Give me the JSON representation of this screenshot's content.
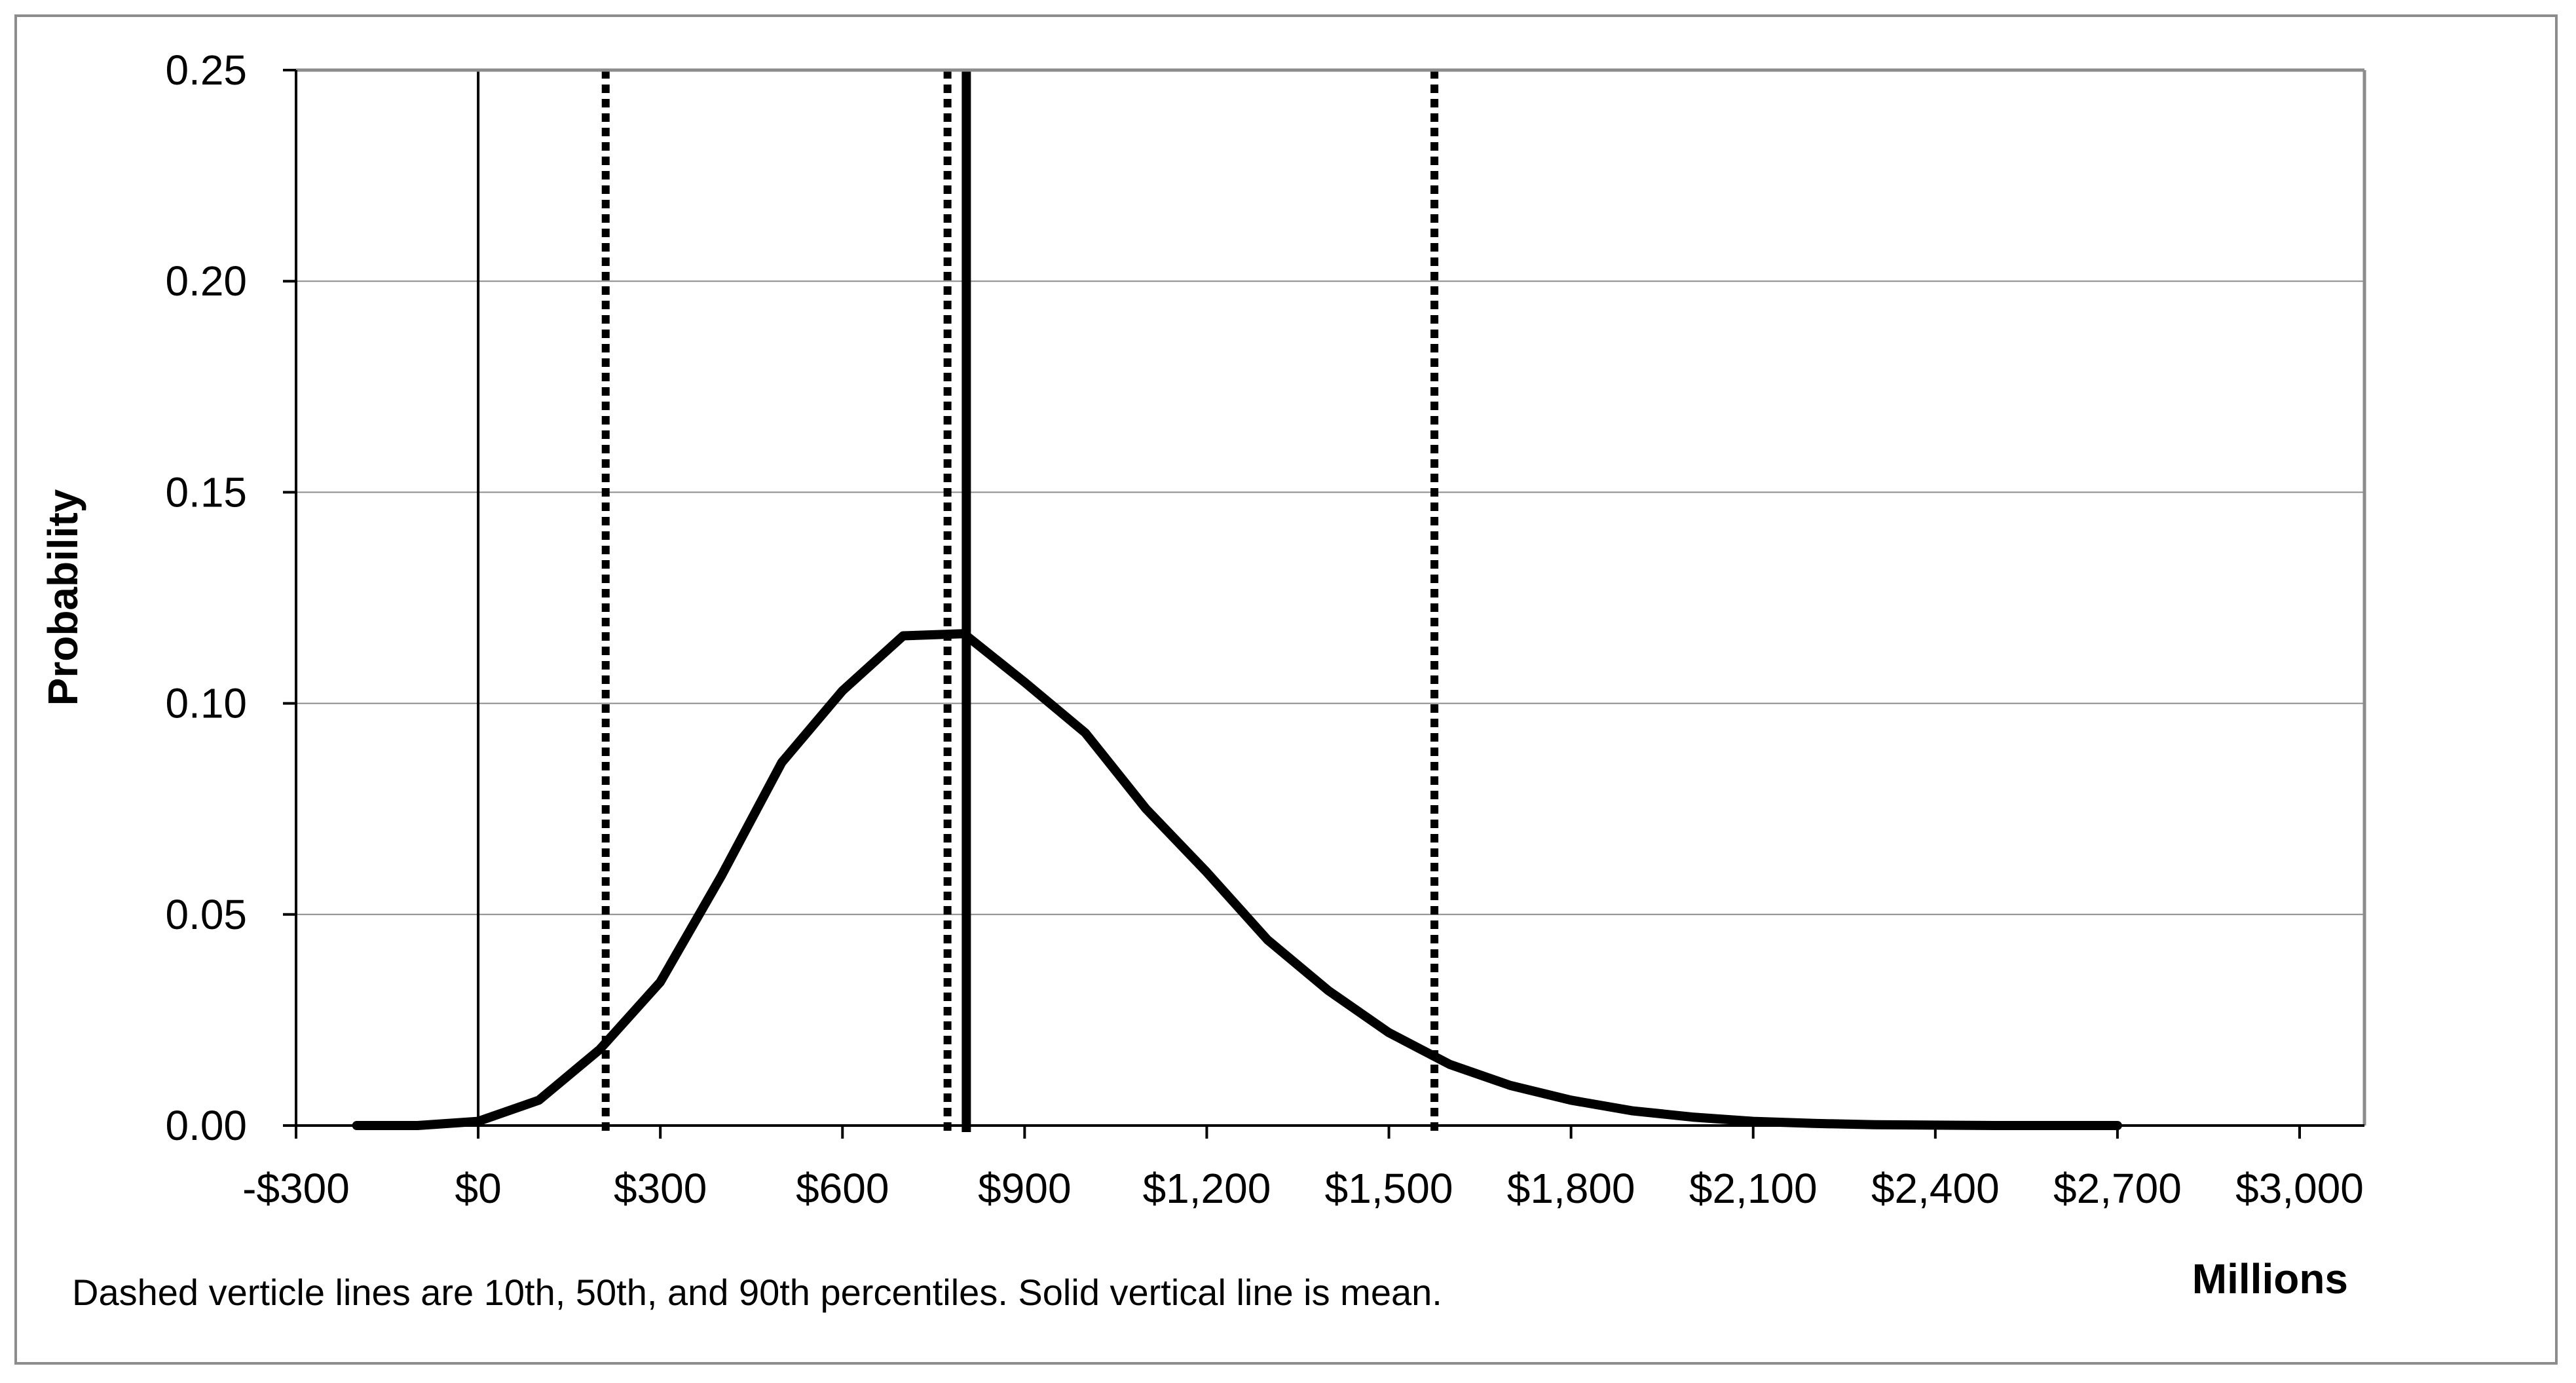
{
  "chart_data": {
    "type": "line",
    "title": "",
    "xlabel": "Millions",
    "ylabel": "Probability",
    "xlim": [
      -300,
      3100
    ],
    "ylim": [
      0,
      0.25
    ],
    "x_ticks": [
      -300,
      0,
      300,
      600,
      900,
      1200,
      1500,
      1800,
      2100,
      2400,
      2700,
      3000
    ],
    "x_tick_labels": [
      "-$300",
      "$0",
      "$300",
      "$600",
      "$900",
      "$1,200",
      "$1,500",
      "$1,800",
      "$2,100",
      "$2,400",
      "$2,700",
      "$3,000"
    ],
    "y_ticks": [
      0,
      0.05,
      0.1,
      0.15,
      0.2,
      0.25
    ],
    "y_tick_labels": [
      "0.00",
      "0.05",
      "0.10",
      "0.15",
      "0.20",
      "0.25"
    ],
    "grid": "horizontal",
    "series": [
      {
        "x": [
          -200,
          -100,
          0,
          100,
          200,
          300,
          400,
          500,
          600,
          700,
          800,
          900,
          1000,
          1100,
          1200,
          1300,
          1400,
          1500,
          1600,
          1700,
          1800,
          1900,
          2000,
          2100,
          2200,
          2300,
          2400,
          2500,
          2600,
          2700
        ],
        "y": [
          0.0,
          0.0,
          0.001,
          0.006,
          0.018,
          0.034,
          0.059,
          0.086,
          0.103,
          0.116,
          0.1165,
          0.105,
          0.093,
          0.075,
          0.06,
          0.044,
          0.032,
          0.022,
          0.0145,
          0.0095,
          0.006,
          0.0035,
          0.002,
          0.001,
          0.0005,
          0.0002,
          0.0001,
          0.0,
          0.0,
          0.0
        ]
      }
    ],
    "reference_lines": [
      {
        "x": 0,
        "style": "thin-solid"
      },
      {
        "x": 210,
        "style": "dashed"
      },
      {
        "x": 773,
        "style": "dashed"
      },
      {
        "x": 804,
        "style": "solid"
      },
      {
        "x": 1575,
        "style": "dashed"
      }
    ],
    "annotations": [
      "Dashed verticle lines are 10th, 50th, and 90th percentiles. Solid vertical line is mean."
    ],
    "colors": {
      "curve": "#000000",
      "frame": "#8c8c8c",
      "grid": "#8c8c8c"
    }
  }
}
